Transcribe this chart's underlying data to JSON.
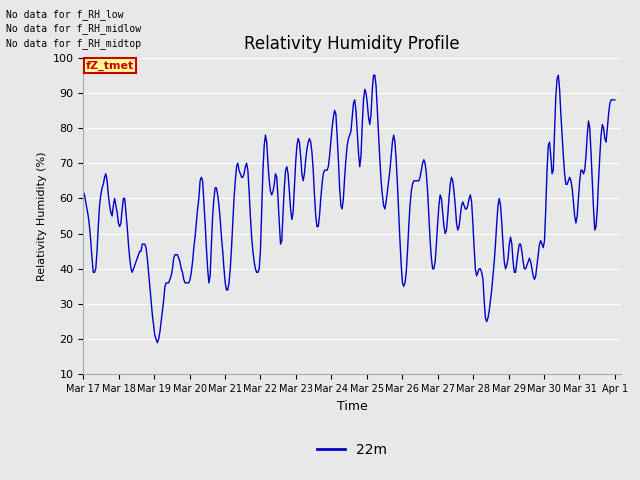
{
  "title": "Relativity Humidity Profile",
  "xlabel": "Time",
  "ylabel": "Relativity Humidity (%)",
  "ylim": [
    10,
    100
  ],
  "yticks": [
    10,
    20,
    30,
    40,
    50,
    60,
    70,
    80,
    90,
    100
  ],
  "legend_label": "22m",
  "line_color": "#0000cc",
  "background_color": "#e8e8e8",
  "plot_bg_color": "#e8e8e8",
  "annotations": [
    "No data for f_RH_low",
    "No data for f_RH_midlow",
    "No data for f_RH_midtop"
  ],
  "legend_box_color": "#ffff99",
  "legend_box_edge": "#cc0000",
  "legend_text_color": "#cc0000",
  "xtick_labels": [
    "Mar 17",
    "Mar 18",
    "Mar 19",
    "Mar 20",
    "Mar 21",
    "Mar 22",
    "Mar 23",
    "Mar 24",
    "Mar 25",
    "Mar 26",
    "Mar 27",
    "Mar 28",
    "Mar 29",
    "Mar 30",
    "Mar 31",
    "Apr 1"
  ],
  "time_values": [
    0,
    24,
    48,
    72,
    96,
    120,
    144,
    168,
    192,
    216,
    240,
    264,
    288,
    312,
    336,
    360
  ],
  "rh_values": [
    62,
    61,
    59,
    57,
    55,
    52,
    48,
    43,
    39,
    39,
    40,
    45,
    52,
    58,
    61,
    63,
    64,
    66,
    67,
    65,
    61,
    58,
    56,
    55,
    58,
    60,
    58,
    56,
    53,
    52,
    53,
    57,
    60,
    60,
    56,
    52,
    47,
    43,
    40,
    39,
    40,
    41,
    42,
    43,
    44,
    45,
    45,
    47,
    47,
    47,
    46,
    43,
    39,
    35,
    31,
    27,
    24,
    21,
    20,
    19,
    20,
    22,
    25,
    28,
    31,
    35,
    36,
    36,
    36,
    37,
    38,
    40,
    43,
    44,
    44,
    44,
    43,
    42,
    40,
    39,
    37,
    36,
    36,
    36,
    36,
    37,
    39,
    42,
    46,
    49,
    53,
    57,
    60,
    65,
    66,
    65,
    59,
    53,
    46,
    40,
    36,
    38,
    47,
    55,
    60,
    63,
    63,
    61,
    58,
    54,
    49,
    45,
    40,
    36,
    34,
    34,
    36,
    40,
    46,
    53,
    60,
    65,
    69,
    70,
    68,
    67,
    66,
    66,
    67,
    69,
    70,
    68,
    62,
    55,
    49,
    45,
    42,
    40,
    39,
    39,
    40,
    45,
    57,
    68,
    75,
    78,
    76,
    70,
    65,
    62,
    61,
    62,
    64,
    67,
    66,
    60,
    53,
    47,
    48,
    56,
    63,
    68,
    69,
    67,
    62,
    57,
    54,
    56,
    63,
    70,
    75,
    77,
    76,
    72,
    67,
    65,
    67,
    71,
    74,
    76,
    77,
    76,
    73,
    68,
    61,
    55,
    52,
    52,
    55,
    60,
    64,
    67,
    68,
    68,
    68,
    69,
    72,
    76,
    80,
    83,
    85,
    84,
    78,
    71,
    63,
    58,
    57,
    60,
    66,
    71,
    75,
    77,
    78,
    79,
    83,
    87,
    88,
    85,
    79,
    73,
    69,
    72,
    81,
    88,
    91,
    90,
    87,
    83,
    81,
    84,
    91,
    95,
    95,
    92,
    85,
    78,
    71,
    65,
    61,
    58,
    57,
    59,
    62,
    65,
    68,
    72,
    76,
    78,
    76,
    71,
    64,
    56,
    48,
    41,
    36,
    35,
    36,
    39,
    45,
    52,
    58,
    62,
    64,
    65,
    65,
    65,
    65,
    65,
    66,
    68,
    70,
    71,
    70,
    67,
    62,
    55,
    48,
    43,
    40,
    40,
    42,
    47,
    53,
    58,
    61,
    60,
    56,
    52,
    50,
    51,
    55,
    60,
    64,
    66,
    65,
    62,
    58,
    53,
    51,
    52,
    55,
    58,
    59,
    58,
    57,
    57,
    58,
    60,
    61,
    59,
    53,
    46,
    40,
    38,
    39,
    40,
    40,
    39,
    37,
    31,
    26,
    25,
    26,
    28,
    31,
    34,
    38,
    42,
    47,
    53,
    58,
    60,
    58,
    53,
    47,
    42,
    40,
    41,
    43,
    47,
    49,
    47,
    42,
    39,
    39,
    42,
    45,
    47,
    47,
    45,
    42,
    40,
    40,
    41,
    42,
    43,
    42,
    40,
    38,
    37,
    38,
    41,
    44,
    47,
    48,
    47,
    46,
    48,
    57,
    68,
    75,
    76,
    72,
    67,
    68,
    79,
    89,
    94,
    95,
    91,
    84,
    78,
    72,
    67,
    64,
    64,
    65,
    66,
    65,
    63,
    59,
    55,
    53,
    55,
    60,
    65,
    68,
    68,
    67,
    68,
    72,
    78,
    82,
    80,
    73,
    65,
    57,
    51,
    52,
    57,
    65,
    72,
    78,
    81,
    80,
    77,
    76,
    80,
    84,
    87,
    88,
    88,
    88,
    88
  ]
}
